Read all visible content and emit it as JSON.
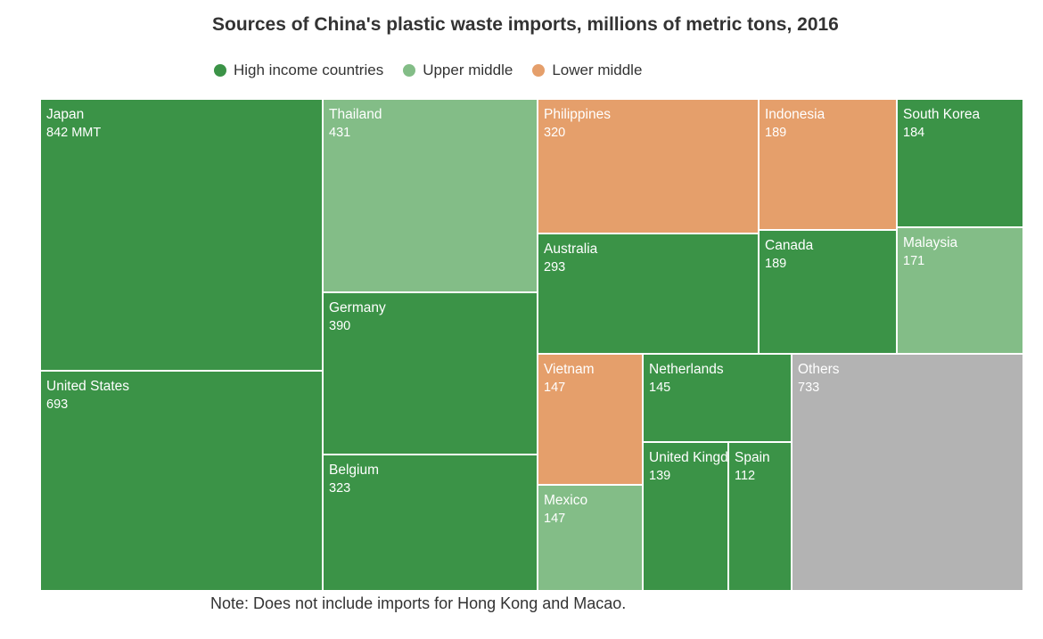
{
  "chart_data": {
    "type": "treemap",
    "title": "Sources of China's plastic waste imports, millions of metric tons, 2016",
    "legend": [
      {
        "key": "high",
        "label": "High income countries",
        "color": "#3b9347"
      },
      {
        "key": "upper",
        "label": "Upper middle",
        "color": "#83bd87"
      },
      {
        "key": "lower",
        "label": "Lower middle",
        "color": "#e59f6b"
      }
    ],
    "other_color": "#b3b3b3",
    "items": [
      {
        "label": "Japan",
        "value": 842,
        "value_text": "842 MMT",
        "group": "high"
      },
      {
        "label": "United States",
        "value": 693,
        "value_text": "693",
        "group": "high"
      },
      {
        "label": "Thailand",
        "value": 431,
        "value_text": "431",
        "group": "upper"
      },
      {
        "label": "Germany",
        "value": 390,
        "value_text": "390",
        "group": "high"
      },
      {
        "label": "Belgium",
        "value": 323,
        "value_text": "323",
        "group": "high"
      },
      {
        "label": "Philippines",
        "value": 320,
        "value_text": "320",
        "group": "lower"
      },
      {
        "label": "Australia",
        "value": 293,
        "value_text": "293",
        "group": "high"
      },
      {
        "label": "Indonesia",
        "value": 189,
        "value_text": "189",
        "group": "lower"
      },
      {
        "label": "Canada",
        "value": 189,
        "value_text": "189",
        "group": "high"
      },
      {
        "label": "South Korea",
        "value": 184,
        "value_text": "184",
        "group": "high"
      },
      {
        "label": "Malaysia",
        "value": 171,
        "value_text": "171",
        "group": "upper"
      },
      {
        "label": "Vietnam",
        "value": 147,
        "value_text": "147",
        "group": "lower"
      },
      {
        "label": "Mexico",
        "value": 147,
        "value_text": "147",
        "group": "upper"
      },
      {
        "label": "Netherlands",
        "value": 145,
        "value_text": "145",
        "group": "high"
      },
      {
        "label": "United Kingdom",
        "value": 139,
        "value_text": "139",
        "group": "high"
      },
      {
        "label": "Spain",
        "value": 112,
        "value_text": "112",
        "group": "high"
      },
      {
        "label": "Others",
        "value": 733,
        "value_text": "733",
        "group": "other"
      }
    ]
  },
  "note": "Note: Does not include imports for Hong Kong and Macao."
}
